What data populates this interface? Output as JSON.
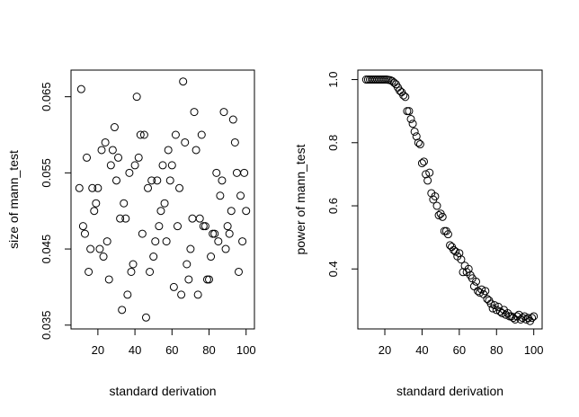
{
  "chart_data": [
    {
      "type": "scatter",
      "xlabel": "standard derivation",
      "ylabel": "size of mann_test",
      "xlim": [
        5.5,
        104.5
      ],
      "ylim": [
        0.0345,
        0.0685
      ],
      "xticks": [
        20,
        40,
        60,
        80,
        100
      ],
      "xtick_labels": [
        "20",
        "40",
        "60",
        "80",
        "100"
      ],
      "yticks": [
        0.035,
        0.045,
        0.055,
        0.065
      ],
      "ytick_labels": [
        "0.035",
        "0.045",
        "0.055",
        "0.065"
      ],
      "x": [
        10,
        11,
        12,
        13,
        14,
        15,
        16,
        17,
        18,
        19,
        20,
        21,
        22,
        23,
        24,
        25,
        26,
        27,
        28,
        29,
        30,
        31,
        32,
        33,
        34,
        35,
        36,
        37,
        38,
        39,
        40,
        41,
        42,
        43,
        44,
        45,
        46,
        47,
        48,
        49,
        50,
        51,
        52,
        53,
        54,
        55,
        56,
        57,
        58,
        59,
        60,
        61,
        62,
        63,
        64,
        65,
        66,
        67,
        68,
        69,
        70,
        71,
        72,
        73,
        74,
        75,
        76,
        77,
        78,
        79,
        80,
        81,
        82,
        83,
        84,
        85,
        86,
        87,
        88,
        89,
        90,
        91,
        92,
        93,
        94,
        95,
        96,
        97,
        98,
        99,
        100
      ],
      "y": [
        0.053,
        0.066,
        0.048,
        0.047,
        0.057,
        0.042,
        0.045,
        0.053,
        0.05,
        0.051,
        0.053,
        0.045,
        0.058,
        0.044,
        0.059,
        0.046,
        0.041,
        0.056,
        0.058,
        0.061,
        0.054,
        0.057,
        0.049,
        0.037,
        0.051,
        0.049,
        0.039,
        0.055,
        0.042,
        0.043,
        0.056,
        0.065,
        0.057,
        0.06,
        0.047,
        0.06,
        0.036,
        0.053,
        0.042,
        0.054,
        0.044,
        0.046,
        0.054,
        0.048,
        0.05,
        0.056,
        0.051,
        0.046,
        0.058,
        0.054,
        0.056,
        0.04,
        0.06,
        0.048,
        0.053,
        0.039,
        0.067,
        0.059,
        0.043,
        0.041,
        0.045,
        0.049,
        0.063,
        0.058,
        0.039,
        0.049,
        0.06,
        0.048,
        0.048,
        0.041,
        0.041,
        0.044,
        0.047,
        0.047,
        0.055,
        0.046,
        0.052,
        0.054,
        0.063,
        0.045,
        0.048,
        0.047,
        0.05,
        0.062,
        0.059,
        0.055,
        0.042,
        0.052,
        0.046,
        0.055,
        0.05
      ]
    },
    {
      "type": "scatter",
      "xlabel": "standard derivation",
      "ylabel": "power of mann_test",
      "xlim": [
        5.5,
        104.5
      ],
      "ylim": [
        0.21,
        1.03
      ],
      "xticks": [
        20,
        40,
        60,
        80,
        100
      ],
      "xtick_labels": [
        "20",
        "40",
        "60",
        "80",
        "100"
      ],
      "yticks": [
        0.4,
        0.6,
        0.8,
        1.0
      ],
      "ytick_labels": [
        "0.4",
        "0.6",
        "0.8",
        "1.0"
      ],
      "x": [
        10,
        11,
        12,
        13,
        14,
        15,
        16,
        17,
        18,
        19,
        20,
        21,
        22,
        23,
        24,
        25,
        26,
        27,
        28,
        29,
        30,
        31,
        32,
        33,
        34,
        35,
        36,
        37,
        38,
        39,
        40,
        41,
        42,
        43,
        44,
        45,
        46,
        47,
        48,
        49,
        50,
        51,
        52,
        53,
        54,
        55,
        56,
        57,
        58,
        59,
        60,
        61,
        62,
        63,
        64,
        65,
        66,
        67,
        68,
        69,
        70,
        71,
        72,
        73,
        74,
        75,
        76,
        77,
        78,
        79,
        80,
        81,
        82,
        83,
        84,
        85,
        86,
        87,
        88,
        89,
        90,
        91,
        92,
        93,
        94,
        95,
        96,
        97,
        98,
        99,
        100
      ],
      "y": [
        1.0,
        1.0,
        1.0,
        1.0,
        1.0,
        1.0,
        1.0,
        1.0,
        1.0,
        1.0,
        1.0,
        1.0,
        0.999,
        0.998,
        0.995,
        0.99,
        0.985,
        0.975,
        0.965,
        0.96,
        0.95,
        0.945,
        0.9,
        0.9,
        0.875,
        0.86,
        0.835,
        0.82,
        0.8,
        0.795,
        0.735,
        0.74,
        0.7,
        0.68,
        0.705,
        0.64,
        0.62,
        0.63,
        0.6,
        0.57,
        0.575,
        0.565,
        0.52,
        0.52,
        0.51,
        0.475,
        0.47,
        0.46,
        0.455,
        0.44,
        0.45,
        0.43,
        0.39,
        0.41,
        0.39,
        0.4,
        0.38,
        0.37,
        0.345,
        0.36,
        0.33,
        0.325,
        0.335,
        0.32,
        0.33,
        0.305,
        0.3,
        0.29,
        0.275,
        0.285,
        0.27,
        0.28,
        0.265,
        0.26,
        0.27,
        0.255,
        0.26,
        0.25,
        0.25,
        0.245,
        0.24,
        0.25,
        0.255,
        0.24,
        0.245,
        0.25,
        0.24,
        0.245,
        0.235,
        0.245,
        0.25
      ]
    }
  ]
}
